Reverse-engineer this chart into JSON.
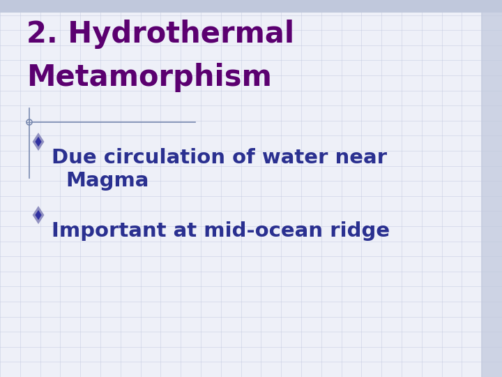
{
  "title_line1": "2. Hydrothermal",
  "title_line2": "Metamorphism",
  "title_color": "#5b0070",
  "bullet_color": "#2a3090",
  "bullet1_line1": "Due circulation of water near",
  "bullet1_line2": "Magma",
  "bullet2": "Important at mid-ocean ridge",
  "background_color": "#eef0f8",
  "grid_color": "#bcc4dc",
  "separator_color": "#7a8ab0",
  "diamond_fill": "#3030a0",
  "diamond_outline": "#9090c0",
  "title_fontsize": 30,
  "bullet_fontsize": 21
}
